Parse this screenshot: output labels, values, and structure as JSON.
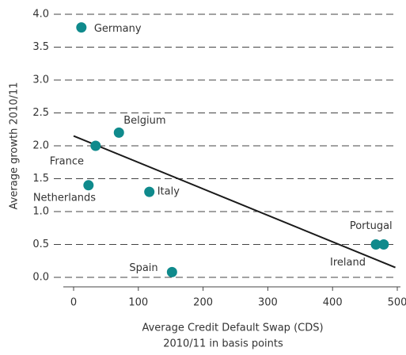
{
  "chart_data": {
    "type": "scatter",
    "y_label": "Average growth 2010/11",
    "x_label": [
      "Average Credit Default Swap (CDS)",
      "2010/11 in basis points"
    ],
    "points": [
      "Germany",
      "Belgium",
      "France",
      "Netherlands",
      "Italy",
      "Spain",
      "Portugal",
      "Ireland"
    ],
    "x": [
      12,
      70,
      34,
      23,
      117,
      152,
      479,
      467
    ],
    "y": [
      3.8,
      2.2,
      2.0,
      1.4,
      1.3,
      0.08,
      0.5,
      0.5
    ],
    "color": "#0f8a8c",
    "trendline": {
      "x": [
        0,
        497
      ],
      "y": [
        2.15,
        0.15
      ],
      "color": "#1a1a1a"
    },
    "xlim": [
      0,
      500
    ],
    "ylim": [
      0,
      4
    ],
    "xticks": [
      0,
      100,
      200,
      300,
      400,
      500
    ],
    "yticks": [
      {
        "value": 0,
        "label": "0.0"
      },
      {
        "value": 0.5,
        "label": "0.5"
      },
      {
        "value": 1,
        "label": "1.0"
      },
      {
        "value": 1.5,
        "label": "1.5"
      },
      {
        "value": 2,
        "label": "2.0"
      },
      {
        "value": 2.5,
        "label": "2.5"
      },
      {
        "value": 3,
        "label": "3.0"
      },
      {
        "value": 3.5,
        "label": "3.5"
      },
      {
        "value": 4,
        "label": "4.0"
      }
    ],
    "grid": true
  }
}
